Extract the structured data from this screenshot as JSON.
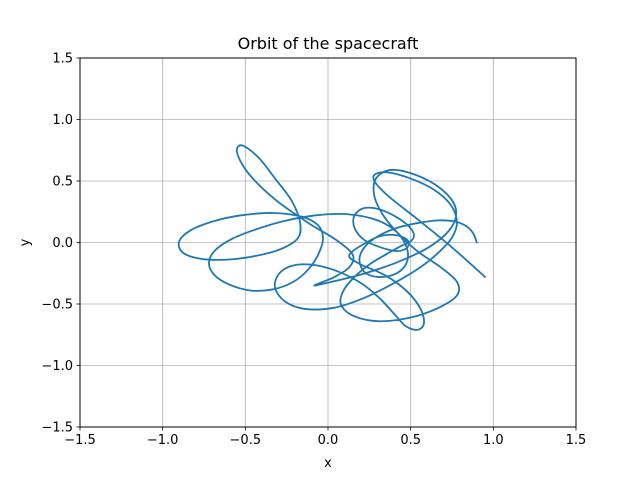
{
  "chart_data": {
    "type": "line",
    "title": "Orbit of the spacecraft",
    "xlabel": "x",
    "ylabel": "y",
    "xlim": [
      -1.5,
      1.5
    ],
    "ylim": [
      -1.5,
      1.5
    ],
    "xticks": [
      -1.5,
      -1.0,
      -0.5,
      0.0,
      0.5,
      1.0,
      1.5
    ],
    "yticks": [
      -1.5,
      -1.0,
      -0.5,
      0.0,
      0.5,
      1.0,
      1.5
    ],
    "xtick_labels": [
      "−1.5",
      "−1.0",
      "−0.5",
      "0.0",
      "0.5",
      "1.0",
      "1.5"
    ],
    "ytick_labels": [
      "−1.5",
      "−1.0",
      "−0.5",
      "0.0",
      "0.5",
      "1.0",
      "1.5"
    ],
    "grid": true,
    "series": [
      {
        "color": "#1f77b4",
        "x": [
          0.9,
          0.88,
          0.84,
          0.77,
          0.67,
          0.55,
          0.42,
          0.3,
          0.22,
          0.19,
          0.22,
          0.3,
          0.4,
          0.47,
          0.48,
          0.42,
          0.3,
          0.12,
          -0.08,
          -0.28,
          -0.45,
          -0.58,
          -0.68,
          -0.72,
          -0.69,
          -0.6,
          -0.47,
          -0.33,
          -0.21,
          -0.12,
          -0.06,
          -0.03,
          -0.06,
          -0.16,
          -0.33,
          -0.53,
          -0.7,
          -0.83,
          -0.9,
          -0.88,
          -0.78,
          -0.62,
          -0.44,
          -0.28,
          -0.18,
          -0.17,
          -0.22,
          -0.32,
          -0.42,
          -0.52,
          -0.55,
          -0.48,
          -0.32,
          -0.12,
          0.05,
          0.15,
          0.13,
          0.04,
          -0.05,
          -0.08,
          0.02,
          0.2,
          0.42,
          0.62,
          0.75,
          0.77,
          0.68,
          0.53,
          0.38,
          0.29,
          0.28,
          0.33,
          0.42,
          0.54,
          0.68,
          0.78,
          0.78,
          0.67,
          0.5,
          0.31,
          0.16,
          0.08,
          0.09,
          0.16,
          0.26,
          0.36,
          0.44,
          0.5,
          0.52,
          0.49,
          0.41,
          0.31,
          0.22,
          0.16,
          0.16,
          0.22,
          0.32,
          0.42,
          0.48,
          0.48,
          0.41,
          0.31,
          0.22,
          0.15,
          0.13,
          0.2,
          0.35,
          0.48,
          0.56,
          0.58,
          0.54,
          0.47,
          0.4,
          0.31,
          0.2,
          0.05,
          -0.1,
          -0.22,
          -0.3,
          -0.32,
          -0.26,
          -0.14,
          0.04,
          0.22,
          0.4,
          0.56,
          0.67,
          0.75,
          0.78,
          0.74,
          0.64,
          0.5,
          0.36,
          0.28,
          0.29,
          0.38,
          0.55,
          0.75,
          0.95
        ],
        "y": [
          0.0,
          0.07,
          0.13,
          0.17,
          0.18,
          0.16,
          0.12,
          0.05,
          -0.04,
          -0.14,
          -0.24,
          -0.28,
          -0.26,
          -0.18,
          -0.06,
          0.08,
          0.18,
          0.23,
          0.22,
          0.17,
          0.1,
          0.03,
          -0.06,
          -0.16,
          -0.26,
          -0.34,
          -0.39,
          -0.38,
          -0.32,
          -0.22,
          -0.1,
          0.03,
          0.14,
          0.21,
          0.24,
          0.22,
          0.17,
          0.1,
          0.01,
          -0.08,
          -0.13,
          -0.14,
          -0.11,
          -0.05,
          0.04,
          0.17,
          0.34,
          0.52,
          0.69,
          0.79,
          0.73,
          0.56,
          0.35,
          0.16,
          0.02,
          -0.1,
          -0.2,
          -0.28,
          -0.33,
          -0.35,
          -0.32,
          -0.26,
          -0.16,
          -0.03,
          0.13,
          0.29,
          0.44,
          0.55,
          0.59,
          0.52,
          0.38,
          0.23,
          0.08,
          -0.07,
          -0.2,
          -0.32,
          -0.43,
          -0.53,
          -0.61,
          -0.64,
          -0.6,
          -0.51,
          -0.4,
          -0.28,
          -0.17,
          -0.09,
          -0.03,
          0.01,
          0.06,
          0.13,
          0.21,
          0.27,
          0.28,
          0.22,
          0.12,
          0.02,
          -0.04,
          -0.07,
          -0.04,
          0.02,
          0.06,
          0.05,
          -0.01,
          -0.07,
          -0.12,
          -0.18,
          -0.27,
          -0.4,
          -0.54,
          -0.66,
          -0.71,
          -0.68,
          -0.58,
          -0.45,
          -0.33,
          -0.23,
          -0.18,
          -0.19,
          -0.26,
          -0.37,
          -0.48,
          -0.54,
          -0.53,
          -0.45,
          -0.33,
          -0.2,
          -0.08,
          0.04,
          0.17,
          0.31,
          0.43,
          0.52,
          0.57,
          0.55,
          0.48,
          0.36,
          0.18,
          -0.04,
          -0.28
        ]
      }
    ]
  }
}
